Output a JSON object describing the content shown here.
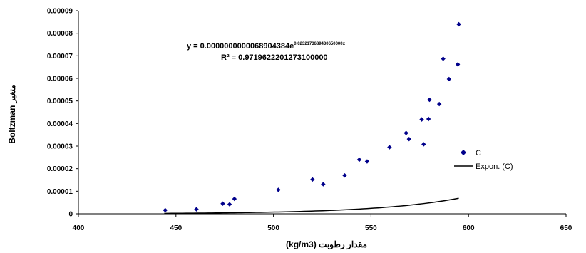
{
  "chart_data": {
    "type": "scatter",
    "xlabel": "مقدار رطوبت (kg/m3)",
    "ylabel": "Boltzman متغیر",
    "xlim": [
      400,
      650
    ],
    "ylim": [
      0,
      9e-05
    ],
    "x_ticks": [
      "400",
      "450",
      "500",
      "550",
      "600",
      "650"
    ],
    "y_ticks": [
      "0",
      "0.00001",
      "0.00002",
      "0.00003",
      "0.00004",
      "0.00005",
      "0.00006",
      "0.00007",
      "0.00008",
      "0.00009"
    ],
    "grid": false,
    "legend_position": "right",
    "series": [
      {
        "name": "C",
        "marker": "diamond",
        "color": "#00008b",
        "points": [
          [
            444.5,
            1.6e-06
          ],
          [
            460.5,
            2e-06
          ],
          [
            474,
            4.5e-06
          ],
          [
            477.5,
            4.2e-06
          ],
          [
            480,
            6.6e-06
          ],
          [
            502.5,
            1.06e-05
          ],
          [
            520,
            1.52e-05
          ],
          [
            525.5,
            1.31e-05
          ],
          [
            536.5,
            1.7e-05
          ],
          [
            544,
            2.4e-05
          ],
          [
            548,
            2.32e-05
          ],
          [
            559.5,
            2.95e-05
          ],
          [
            568,
            3.58e-05
          ],
          [
            569.5,
            3.31e-05
          ],
          [
            576,
            4.18e-05
          ],
          [
            577,
            3.08e-05
          ],
          [
            579.5,
            4.2e-05
          ],
          [
            580,
            5.05e-05
          ],
          [
            585,
            4.86e-05
          ],
          [
            587,
            6.87e-05
          ],
          [
            590,
            5.97e-05
          ],
          [
            594.5,
            6.62e-05
          ],
          [
            595,
            8.4e-05
          ]
        ]
      },
      {
        "name": "Expon. (C)",
        "kind": "trendline",
        "color": "#000000",
        "x_range": [
          444,
          595
        ]
      }
    ],
    "annotations": {
      "equation_main": "y = 0.0000000000068904384e",
      "equation_exp": "0.0232173689430650000x",
      "r_squared": "R² = 0.9719622201273100000"
    }
  }
}
